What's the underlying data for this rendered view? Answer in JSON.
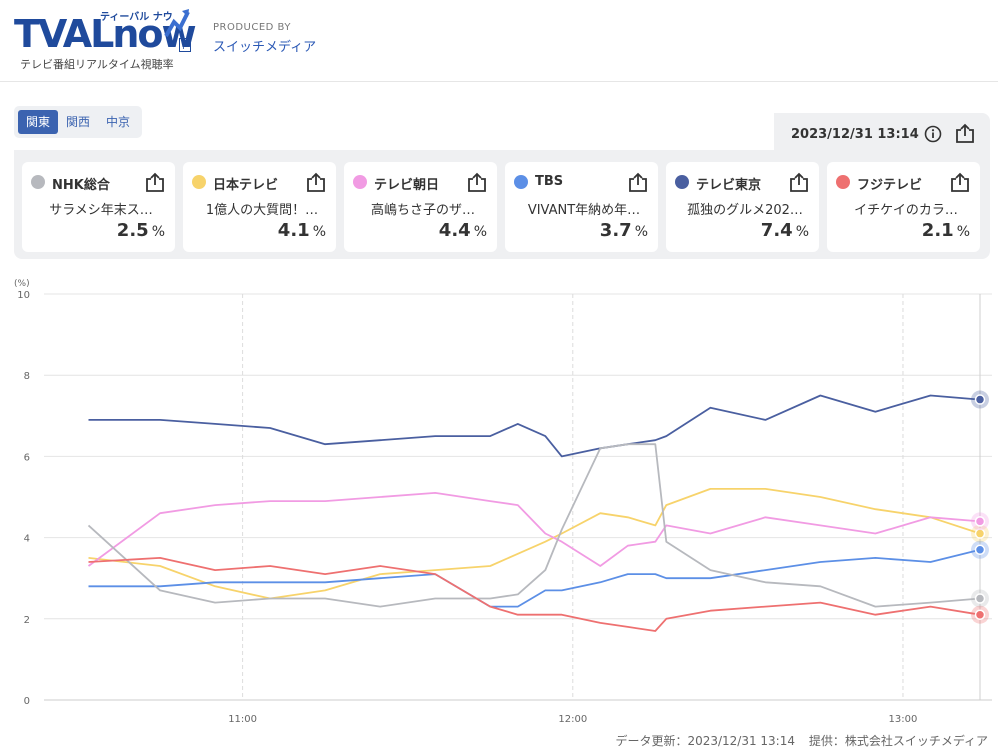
{
  "header": {
    "logo_text": "TVALnow",
    "logo_kana": "ティーバル ナウ",
    "logo_beta": "β",
    "logo_subtitle": "テレビ番組リアルタイム視聴率",
    "produced_label": "PRODUCED BY",
    "produced_name": "スイッチメディア"
  },
  "tabs": [
    {
      "label": "関東",
      "active": true
    },
    {
      "label": "関西",
      "active": false
    },
    {
      "label": "中京",
      "active": false
    }
  ],
  "timestamp": "2023/12/31 13:14",
  "icons": {
    "info": "info-icon",
    "share": "share-icon"
  },
  "channels": [
    {
      "name": "NHK総合",
      "program": "サラメシ年末ス…",
      "rating": "2.5",
      "unit": "%",
      "color": "#b7b9be"
    },
    {
      "name": "日本テレビ",
      "program": "1億人の大質問！…",
      "rating": "4.1",
      "unit": "%",
      "color": "#f7d36b"
    },
    {
      "name": "テレビ朝日",
      "program": "高嶋ちさ子のザ…",
      "rating": "4.4",
      "unit": "%",
      "color": "#f19be3"
    },
    {
      "name": "TBS",
      "program": "VIVANT年納め年…",
      "rating": "3.7",
      "unit": "%",
      "color": "#5c8fe6"
    },
    {
      "name": "テレビ東京",
      "program": "孤独のグルメ202…",
      "rating": "7.4",
      "unit": "%",
      "color": "#4a5fa0"
    },
    {
      "name": "フジテレビ",
      "program": "イチケイのカラ…",
      "rating": "2.1",
      "unit": "%",
      "color": "#ee7070"
    }
  ],
  "chart_data": {
    "type": "line",
    "ylabel": "(%)",
    "ylim": [
      0,
      10
    ],
    "yticks": [
      "0",
      "2",
      "4",
      "6",
      "8",
      "10"
    ],
    "xticks": [
      "11:00",
      "12:00",
      "13:00"
    ],
    "x": [
      "10:32",
      "10:45",
      "10:55",
      "11:05",
      "11:15",
      "11:25",
      "11:35",
      "11:45",
      "11:50",
      "11:55",
      "11:58",
      "12:05",
      "12:10",
      "12:15",
      "12:17",
      "12:25",
      "12:35",
      "12:45",
      "12:55",
      "13:05",
      "13:14"
    ],
    "series": [
      {
        "name": "テレビ東京",
        "color": "#4a5fa0",
        "values": [
          6.9,
          6.9,
          6.8,
          6.7,
          6.3,
          6.4,
          6.5,
          6.5,
          6.8,
          6.5,
          6.0,
          6.2,
          6.3,
          6.4,
          6.5,
          7.2,
          6.9,
          7.5,
          7.1,
          7.5,
          7.4
        ]
      },
      {
        "name": "日本テレビ",
        "color": "#f7d36b",
        "values": [
          3.5,
          3.3,
          2.8,
          2.5,
          2.7,
          3.1,
          3.2,
          3.3,
          3.6,
          3.9,
          4.1,
          4.6,
          4.5,
          4.3,
          4.8,
          5.2,
          5.2,
          5.0,
          4.7,
          4.5,
          4.1
        ]
      },
      {
        "name": "テレビ朝日",
        "color": "#f19be3",
        "values": [
          3.3,
          4.6,
          4.8,
          4.9,
          4.9,
          5.0,
          5.1,
          4.9,
          4.8,
          4.1,
          3.9,
          3.3,
          3.8,
          3.9,
          4.3,
          4.1,
          4.5,
          4.3,
          4.1,
          4.5,
          4.4
        ]
      },
      {
        "name": "TBS",
        "color": "#5c8fe6",
        "values": [
          2.8,
          2.8,
          2.9,
          2.9,
          2.9,
          3.0,
          3.1,
          2.3,
          2.3,
          2.7,
          2.7,
          2.9,
          3.1,
          3.1,
          3.0,
          3.0,
          3.2,
          3.4,
          3.5,
          3.4,
          3.7
        ]
      },
      {
        "name": "NHK総合",
        "color": "#b7b9be",
        "values": [
          4.3,
          2.7,
          2.4,
          2.5,
          2.5,
          2.3,
          2.5,
          2.5,
          2.6,
          3.2,
          4.2,
          6.2,
          6.3,
          6.3,
          3.9,
          3.2,
          2.9,
          2.8,
          2.3,
          2.4,
          2.5
        ]
      },
      {
        "name": "フジテレビ",
        "color": "#ee7070",
        "values": [
          3.4,
          3.5,
          3.2,
          3.3,
          3.1,
          3.3,
          3.1,
          2.3,
          2.1,
          2.1,
          2.1,
          1.9,
          1.8,
          1.7,
          2.0,
          2.2,
          2.3,
          2.4,
          2.1,
          2.3,
          2.1
        ]
      }
    ]
  },
  "footer": {
    "update": "データ更新：2023/12/31 13:14",
    "provider": "提供：株式会社スイッチメディア"
  }
}
